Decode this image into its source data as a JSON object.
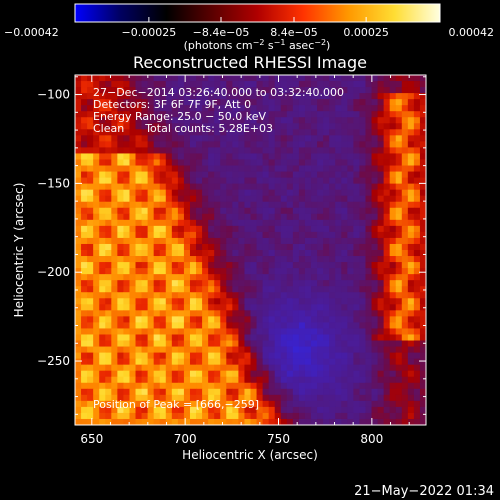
{
  "colorbar": {
    "ticks": [
      "−0.00042",
      "−0.00025",
      "−8.4e−05",
      "8.4e−05",
      "0.00025",
      "0.00042"
    ],
    "unit_prefix": "(photons cm",
    "unit_exp1": "−2",
    "unit_mid1": " s",
    "unit_exp2": "−1",
    "unit_mid2": " asec",
    "unit_exp3": "−2",
    "unit_suffix": ")",
    "stops": [
      "#0000ff",
      "#000060",
      "#000000",
      "#5a0000",
      "#b00000",
      "#ff3300",
      "#ff9900",
      "#ffdd33",
      "#ffffe0"
    ]
  },
  "chart_data": {
    "type": "heatmap",
    "title": "Reconstructed RHESSI Image",
    "xlabel": "Heliocentric X (arcsec)",
    "ylabel": "Heliocentric Y (arcsec)",
    "xlim": [
      641,
      829
    ],
    "ylim": [
      -286,
      -89
    ],
    "xticks": [
      650,
      700,
      750,
      800
    ],
    "yticks": [
      -100,
      -150,
      -200,
      -250
    ],
    "xtick_labels": [
      "650",
      "700",
      "750",
      "800"
    ],
    "ytick_labels": [
      "−100",
      "−150",
      "−200",
      "−250"
    ],
    "colorbar_range": [
      -0.00042,
      0.00042
    ],
    "annotations": [
      "27−Dec−2014 03:26:40.000 to 03:32:40.000",
      "Detectors: 3F 6F 7F 9F, Att 0",
      "Energy Range: 25.0 − 50.0 keV",
      "Clean      Total counts: 5.28E+03"
    ],
    "peak_label": "Position of Peak = [666,−259]",
    "peak": [
      666,
      -259
    ]
  },
  "footer": {
    "timestamp": "21−May−2022 01:34"
  }
}
